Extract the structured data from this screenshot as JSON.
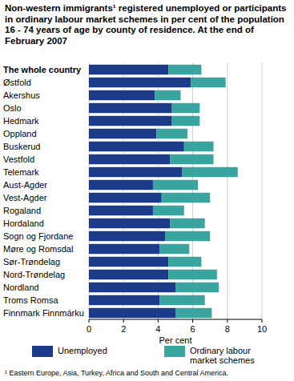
{
  "chart_data": {
    "type": "bar",
    "orientation": "horizontal",
    "stacked": true,
    "grid": true,
    "title": "Non-western immigrants¹ registered unemployed or participants in ordinary labour market schemes in per cent of the population 16 - 74 years of age by county of residence. At the end of February 2007",
    "x_label": "Per cent",
    "footnote": "¹  Eastern Europe, Asia, Turkey, Africa and South and Central America.",
    "legend": "bottom",
    "categories": [
      "The whole country",
      "Østfold",
      "Akershus",
      "Oslo",
      "Hedmark",
      "Oppland",
      "Buskerud",
      "Vestfold",
      "Telemark",
      "Aust-Agder",
      "Vest-Agder",
      "Rogaland",
      "Hordaland",
      "Sogn og Fjordane",
      "Møre og Romsdal",
      "Sør-Trøndelag",
      "Nord-Trøndelag",
      "Nordland",
      "Troms Romsa",
      "Finnmark Finnmárku"
    ],
    "series": [
      {
        "name": "Unemployed",
        "color": "#1c3a8a",
        "values": [
          4.6,
          5.9,
          3.8,
          4.8,
          4.8,
          3.9,
          5.5,
          4.7,
          5.4,
          3.7,
          4.2,
          3.7,
          4.7,
          4.4,
          4.1,
          4.6,
          4.6,
          5.0,
          4.1,
          5.0
        ]
      },
      {
        "name": "Ordinary labour market schemes",
        "color": "#3aa59f",
        "values": [
          1.9,
          2.0,
          1.5,
          1.6,
          1.6,
          1.8,
          1.7,
          2.5,
          3.2,
          2.6,
          2.8,
          1.8,
          2.0,
          2.6,
          1.7,
          1.9,
          2.8,
          2.5,
          2.6,
          2.1
        ]
      }
    ],
    "xlim": [
      0,
      10
    ],
    "xticks": [
      0,
      2,
      4,
      6,
      8,
      10
    ]
  }
}
